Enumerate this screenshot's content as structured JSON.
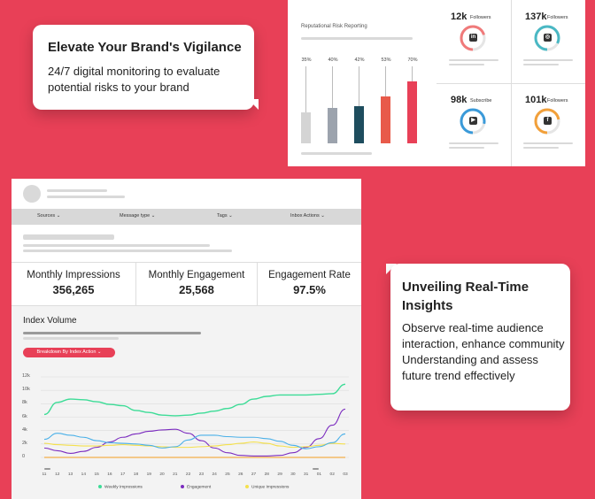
{
  "bubble_vigilance": {
    "title": "Elevate Your Brand's Vigilance",
    "body": "24/7 digital monitoring to evaluate potential risks to your brand"
  },
  "bubble_insights": {
    "title": "Unveiling Real-Time Insights",
    "body": "Observe real-time audience interaction, enhance community Understanding and assess future trend effectively"
  },
  "risk_panel": {
    "title": "Reputational Risk Reporting",
    "bars": [
      {
        "pct": "35%",
        "value": 35,
        "color": "#d4d4d4"
      },
      {
        "pct": "40%",
        "value": 40,
        "color": "#9ca3ad"
      },
      {
        "pct": "42%",
        "value": 42,
        "color": "#1e4d5e"
      },
      {
        "pct": "53%",
        "value": 53,
        "color": "#e85a4a"
      },
      {
        "pct": "70%",
        "value": 70,
        "color": "#e84057"
      }
    ]
  },
  "social": [
    {
      "count": "12k",
      "label": "Followers",
      "icon": "linkedin-icon",
      "glyph": "in",
      "color": "#f07a7a",
      "fraction": 0.7
    },
    {
      "count": "137k",
      "label": "Followers",
      "icon": "instagram-icon",
      "glyph": "◎",
      "color": "#4ab8c4",
      "fraction": 0.82
    },
    {
      "count": "98k",
      "label": "Subscribe",
      "icon": "youtube-icon",
      "glyph": "▶",
      "color": "#3a9ad9",
      "fraction": 0.78
    },
    {
      "count": "101k",
      "label": "Followers",
      "icon": "facebook-icon",
      "glyph": "f",
      "color": "#f2a03a",
      "fraction": 0.72
    }
  ],
  "dashboard": {
    "filters": [
      "Sources ⌄",
      "Message type ⌄",
      "Tags ⌄",
      "Inbox Actions ⌄"
    ],
    "metrics": [
      {
        "label": "Monthly Impressions",
        "value": "356,265",
        "color": "#f39c1f"
      },
      {
        "label": "Monthly Engagement",
        "value": "25,568",
        "color": "#333333"
      },
      {
        "label": "Engagement Rate",
        "value": "97.5%",
        "color": "#3aa64a"
      }
    ],
    "index_volume_title": "Index Volume",
    "breakdown_button": "Breakdown By Index Action ⌄"
  },
  "chart_data": {
    "type": "line",
    "y_ticks": [
      "12k",
      "10k",
      "8k",
      "6k",
      "4k",
      "2k",
      "0"
    ],
    "ylim": [
      0,
      12000
    ],
    "x": [
      "11",
      "12",
      "13",
      "14",
      "15",
      "16",
      "17",
      "18",
      "19",
      "20",
      "21",
      "22",
      "23",
      "24",
      "25",
      "26",
      "27",
      "28",
      "29",
      "30",
      "31",
      "01",
      "02",
      "03"
    ],
    "series": [
      {
        "name": "Weekly Impressions",
        "color": "#3ddc97",
        "values": [
          6400,
          8200,
          8700,
          8600,
          8300,
          7900,
          7700,
          7000,
          6700,
          6300,
          6200,
          6300,
          6600,
          6900,
          7300,
          7900,
          8700,
          9100,
          9300,
          9300,
          9300,
          9400,
          9500,
          10900
        ]
      },
      {
        "name": "Engagement",
        "color": "#7b2cbf",
        "values": [
          1400,
          1000,
          600,
          900,
          1500,
          2300,
          3000,
          3500,
          3900,
          4100,
          4200,
          3600,
          2500,
          1400,
          700,
          300,
          200,
          200,
          300,
          700,
          1500,
          2800,
          4800,
          7200
        ]
      },
      {
        "name": "Unique Impressions",
        "color": "#f4e04d",
        "values": [
          2100,
          1900,
          1800,
          1700,
          1700,
          1800,
          1900,
          1800,
          1700,
          1600,
          1500,
          1500,
          1600,
          1700,
          1900,
          2100,
          2300,
          2100,
          1700,
          1500,
          1600,
          1800,
          2100,
          2000
        ]
      },
      {
        "name": "",
        "color": "#4ab0e8",
        "values": [
          2700,
          3600,
          3300,
          3000,
          2500,
          2200,
          2100,
          2000,
          1800,
          1400,
          1600,
          2600,
          3300,
          3300,
          3100,
          3000,
          3000,
          2800,
          2400,
          1800,
          1300,
          1600,
          2200,
          3500
        ]
      },
      {
        "name": "",
        "color": "#f39c1f",
        "values": [
          0,
          0,
          0,
          0,
          0,
          0,
          0,
          0,
          0,
          0,
          0,
          0,
          0,
          0,
          0,
          0,
          0,
          0,
          0,
          0,
          0,
          0,
          0,
          0
        ]
      }
    ]
  }
}
